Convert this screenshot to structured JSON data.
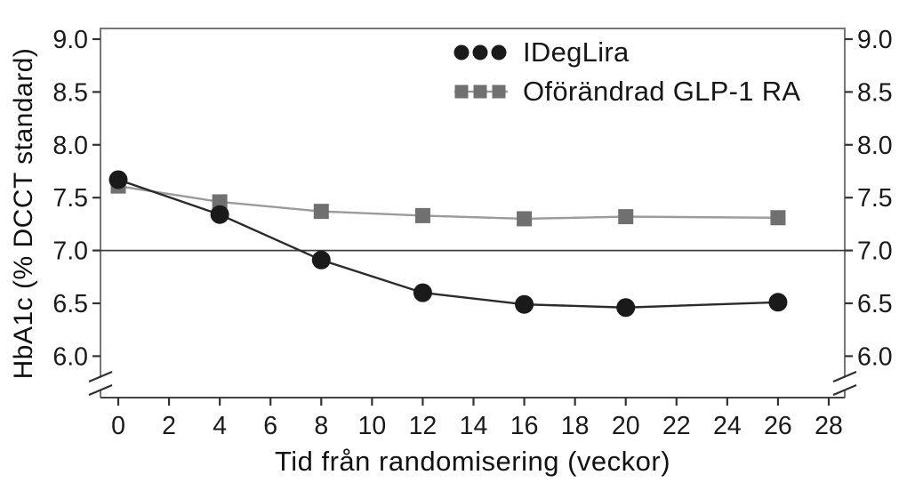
{
  "chart_data": {
    "type": "line",
    "title": "",
    "xlabel": "Tid från randomisering (veckor)",
    "ylabel": "HbA1c (% DCCT standard)",
    "x_ticks": [
      0,
      2,
      4,
      6,
      8,
      10,
      12,
      14,
      16,
      18,
      20,
      22,
      24,
      26,
      28
    ],
    "y_ticks": [
      9.0,
      8.5,
      8.0,
      7.5,
      7.0,
      6.5,
      6.0
    ],
    "ylim": [
      6.0,
      9.0
    ],
    "xlim": [
      0,
      28
    ],
    "grid": false,
    "axis_break_at_bottom": true,
    "reference_line_y": 7.0,
    "legend_position": "top-center-inside",
    "x": [
      0,
      4,
      8,
      12,
      16,
      20,
      26
    ],
    "series": [
      {
        "name": "IDegLira",
        "marker": "circle",
        "marker_color": "#1a1a1a",
        "line_color": "#2b2b2b",
        "values": [
          7.67,
          7.34,
          6.91,
          6.6,
          6.49,
          6.46,
          6.51
        ]
      },
      {
        "name": "Oförändrad GLP-1 RA",
        "marker": "square",
        "marker_color": "#707070",
        "line_color": "#9b9b9b",
        "values": [
          7.61,
          7.46,
          7.37,
          7.33,
          7.3,
          7.32,
          7.31
        ]
      }
    ]
  },
  "axes": {
    "x_title": "Tid från randomisering (veckor)",
    "y_title": "HbA1c (% DCCT standard)"
  },
  "legend": {
    "items": [
      {
        "label": "IDegLira"
      },
      {
        "label": "Oförändrad GLP-1 RA"
      }
    ]
  },
  "colors": {
    "frame": "#777777",
    "axis": "#424242",
    "tick": "#333333",
    "tick_label": "#1a1a1a",
    "reference_line": "#3f3f3f",
    "background": "#ffffff"
  }
}
